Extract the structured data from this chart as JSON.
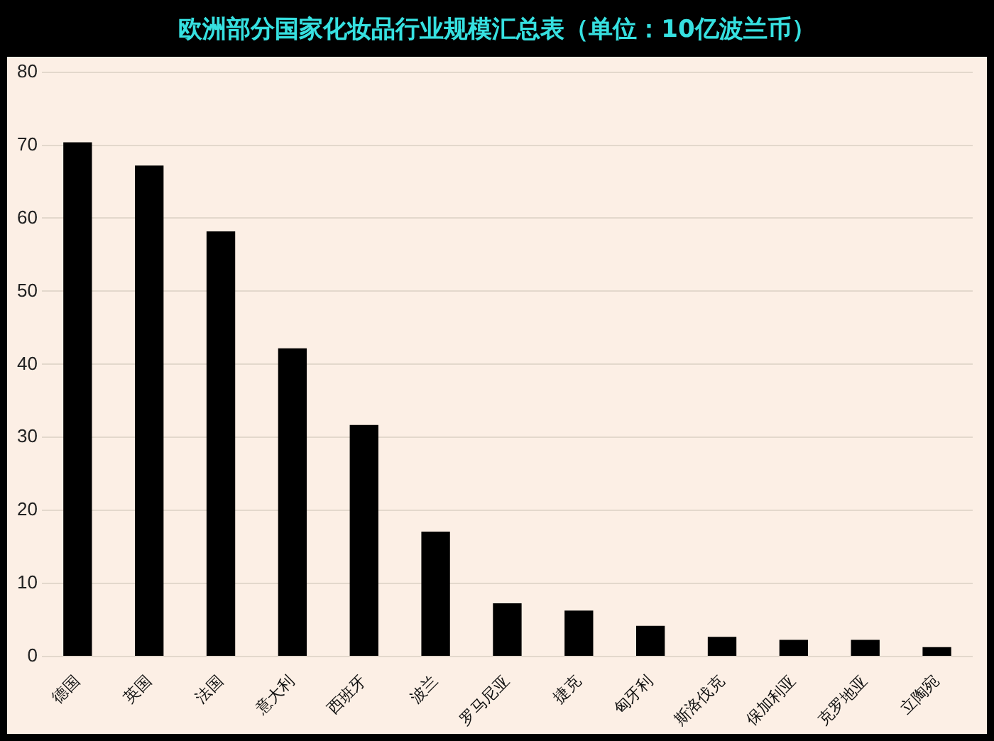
{
  "chart_data": {
    "type": "bar",
    "title": "欧洲部分国家化妆品行业规模汇总表（单位：10亿波兰币）",
    "categories": [
      "德国",
      "英国",
      "法国",
      "意大利",
      "西班牙",
      "波兰",
      "罗马尼亚",
      "捷克",
      "匈牙利",
      "斯洛伐克",
      "保加利亚",
      "克罗地亚",
      "立陶宛"
    ],
    "values": [
      70.4,
      67.2,
      58.2,
      42.2,
      31.7,
      17.1,
      7.3,
      6.3,
      4.2,
      2.7,
      2.3,
      2.3,
      1.3
    ],
    "color": "#000000",
    "ylim": [
      0,
      80
    ],
    "yticks": [
      0,
      10,
      20,
      30,
      40,
      50,
      60,
      70,
      80
    ],
    "grid": "y",
    "legend": false
  }
}
